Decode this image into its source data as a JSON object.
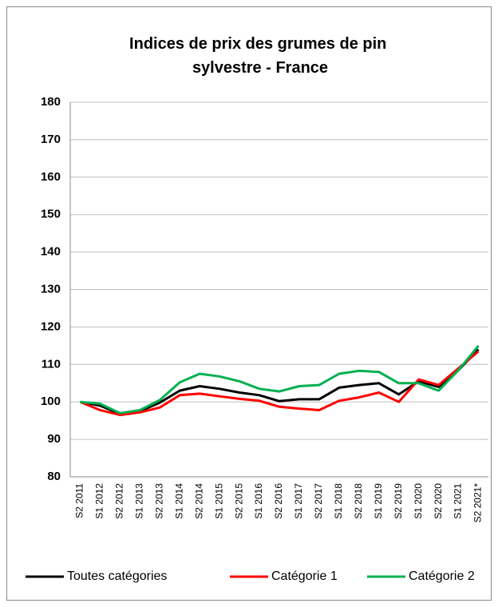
{
  "chart_data": {
    "type": "line",
    "title": [
      "Indices de prix des grumes de pin",
      "sylvestre -  France"
    ],
    "categories": [
      "S2 2011",
      "S1 2012",
      "S2 2012",
      "S1 2013",
      "S2 2013",
      "S1 2014",
      "S2 2014",
      "S1 2015",
      "S2 2015",
      "S1 2016",
      "S2 2016",
      "S1 2017",
      "S2 2017",
      "S1 2018",
      "S2 2018",
      "S1 2019",
      "S2 2019",
      "S1 2020",
      "S2 2020",
      "S1 2021",
      "S2 2021*"
    ],
    "series": [
      {
        "name": "Toutes catégories",
        "color": "#000000",
        "values": [
          100,
          99,
          96.8,
          97.5,
          99.8,
          103,
          104.2,
          103.5,
          102.5,
          101.8,
          100.2,
          100.7,
          100.7,
          103.8,
          104.5,
          105,
          102,
          105.5,
          104,
          108.5,
          114
        ]
      },
      {
        "name": "Catégorie 1",
        "color": "#ff0000",
        "values": [
          100,
          97.8,
          96.5,
          97.2,
          98.5,
          101.8,
          102.2,
          101.5,
          100.8,
          100.3,
          98.7,
          98.2,
          97.8,
          100.3,
          101.2,
          102.5,
          100,
          106,
          104.5,
          109,
          113.5
        ]
      },
      {
        "name": "Catégorie 2",
        "color": "#00b050",
        "values": [
          100,
          99.5,
          97,
          97.8,
          100.5,
          105.2,
          107.5,
          106.8,
          105.5,
          103.5,
          102.8,
          104.2,
          104.5,
          107.5,
          108.3,
          108,
          105,
          105,
          103,
          108.5,
          115
        ]
      }
    ],
    "ylim": [
      80,
      180
    ],
    "yticks": [
      80,
      90,
      100,
      110,
      120,
      130,
      140,
      150,
      160,
      170,
      180
    ],
    "grid": true,
    "legend": "bottom"
  }
}
